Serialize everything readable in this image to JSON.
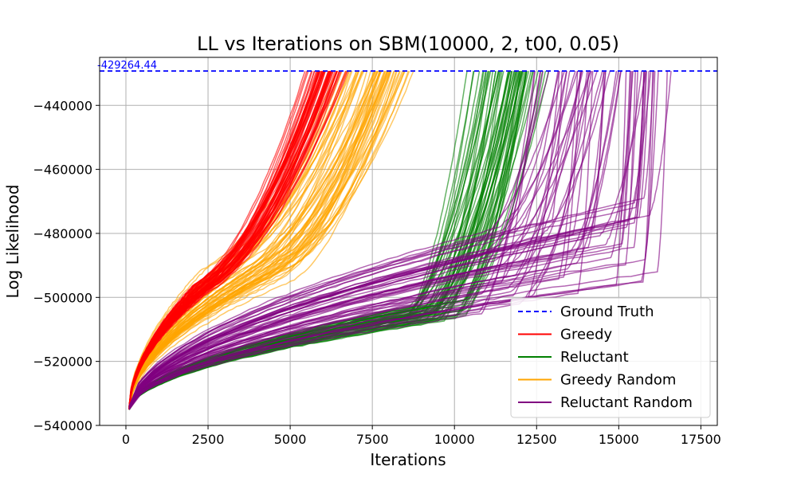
{
  "chart_data": {
    "type": "line",
    "title": "LL vs Iterations on SBM(10000, 2, t00, 0.05)",
    "xlabel": "Iterations",
    "ylabel": "Log Likelihood",
    "xlim": [
      -800,
      18000
    ],
    "ylim": [
      -540000,
      -425000
    ],
    "xticks": [
      0,
      2500,
      5000,
      7500,
      10000,
      12500,
      15000,
      17500
    ],
    "xtick_labels": [
      "0",
      "2500",
      "5000",
      "7500",
      "10000",
      "12500",
      "15000",
      "17500"
    ],
    "yticks": [
      -540000,
      -520000,
      -500000,
      -480000,
      -460000,
      -440000
    ],
    "ytick_labels": [
      "−540000",
      "−520000",
      "−500000",
      "−480000",
      "−460000",
      "−440000"
    ],
    "grid": true,
    "legend_position": "lower-right",
    "ground_truth": {
      "name": "Ground Truth",
      "value": -429264.44,
      "label": "-429264.44",
      "color": "#0000ff",
      "style": "dashed"
    },
    "series": [
      {
        "name": "Greedy",
        "color": "#ff0000",
        "runs": 60,
        "start_y": -534500,
        "phase1_end_x": [
          2000,
          2600
        ],
        "phase1_end_y": [
          -500000,
          -494000
        ],
        "end_x": [
          5400,
          6900
        ],
        "end_y": -429264.44
      },
      {
        "name": "Reluctant",
        "color": "#008000",
        "runs": 60,
        "start_y": -534500,
        "phase1_end_x": [
          8500,
          10500
        ],
        "phase1_end_y": [
          -509000,
          -500000
        ],
        "end_x": [
          10300,
          13200
        ],
        "end_y": -429264.44
      },
      {
        "name": "Greedy Random",
        "color": "#ffa500",
        "runs": 60,
        "start_y": -534500,
        "phase1_end_x": [
          2200,
          5200
        ],
        "phase1_end_y": [
          -499000,
          -485000
        ],
        "end_x": [
          6200,
          9000
        ],
        "end_y": -429264.44
      },
      {
        "name": "Reluctant Random",
        "color": "#800080",
        "runs": 60,
        "start_y": -534500,
        "phase1_end_x": [
          10500,
          16200
        ],
        "phase1_end_y": [
          -506000,
          -468000
        ],
        "end_x": [
          11800,
          16900
        ],
        "end_y": -429264.44
      }
    ],
    "legend": [
      "Ground Truth",
      "Greedy",
      "Reluctant",
      "Greedy Random",
      "Reluctant Random"
    ]
  }
}
